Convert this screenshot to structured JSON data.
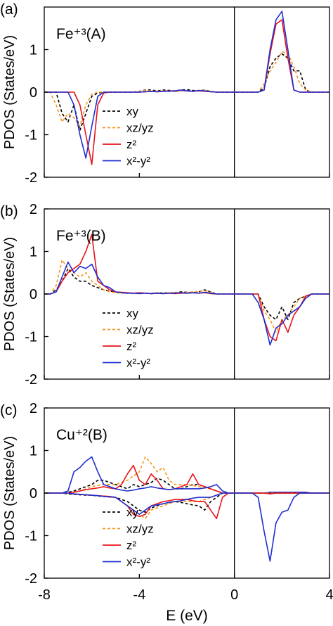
{
  "chart_data": [
    {
      "type": "line",
      "panel_label": "(a)",
      "annotation": "Fe⁺³(A)",
      "ylabel": "PDOS (States/eV)",
      "xlim": [
        -8,
        4
      ],
      "xticks": [
        -8,
        -4,
        0,
        4
      ],
      "ylim": [
        -2,
        2
      ],
      "yticks": [
        -2,
        -1,
        0,
        1
      ],
      "vline": 0,
      "x": [
        -8,
        -7.75,
        -7.5,
        -7.25,
        -7,
        -6.75,
        -6.5,
        -6.25,
        -6,
        -5.75,
        -5.5,
        -5.25,
        -5,
        -4.75,
        -4.5,
        -4.25,
        -4,
        -3.75,
        -3.5,
        -3.25,
        -3,
        -2.75,
        -2.5,
        -2.25,
        -2,
        -1.75,
        -1.5,
        -1.25,
        -1,
        -0.75,
        -0.5,
        -0.25,
        0,
        0.25,
        0.5,
        0.75,
        1,
        1.25,
        1.5,
        1.75,
        2,
        2.25,
        2.5,
        2.75,
        3,
        3.25,
        3.5,
        3.75,
        4
      ],
      "series": [
        {
          "name": "xy",
          "color": "#000000",
          "dash": true,
          "values": [
            0,
            0,
            0,
            -0.5,
            -0.7,
            -0.3,
            -0.9,
            -0.5,
            -0.1,
            -0.02,
            0,
            0,
            0,
            0,
            0,
            0,
            0.02,
            0.05,
            0.05,
            0.03,
            0.05,
            0.04,
            0.03,
            0.05,
            0.06,
            0.04,
            0.03,
            0.05,
            0.02,
            0,
            0,
            0,
            0,
            0,
            0,
            0,
            0,
            0.1,
            0.6,
            0.8,
            0.9,
            0.8,
            0.5,
            0.5,
            0.05,
            0,
            0,
            0,
            0
          ]
        },
        {
          "name": "xz/yz",
          "color": "#f7941d",
          "dash": true,
          "values": [
            0,
            0,
            -0.3,
            -0.7,
            -0.5,
            -0.6,
            -0.8,
            -0.3,
            -0.05,
            0,
            0,
            0,
            0,
            0,
            0,
            0,
            0.02,
            0.04,
            0.03,
            0.02,
            0.03,
            0.02,
            0.03,
            0.04,
            0.03,
            0.02,
            0.03,
            0.04,
            0.02,
            0,
            0,
            0,
            0,
            0,
            0,
            0,
            0,
            0.2,
            0.5,
            0.7,
            0.95,
            0.9,
            0.6,
            0.2,
            0.05,
            0,
            0,
            0,
            0
          ]
        },
        {
          "name": "z²",
          "color": "#e8141b",
          "dash": false,
          "values": [
            0,
            0,
            0,
            0,
            0,
            0,
            -0.3,
            -1.0,
            -1.7,
            -0.3,
            -0.02,
            0,
            0,
            0,
            0,
            0,
            0,
            0.01,
            0.02,
            0.01,
            0.02,
            0.03,
            0.02,
            0.04,
            0.03,
            0.02,
            0.03,
            0.02,
            0.01,
            0,
            0,
            0,
            0,
            0,
            0,
            0,
            0,
            0.05,
            0.9,
            1.6,
            1.7,
            0.8,
            0.05,
            0,
            0,
            0,
            0,
            0,
            0
          ]
        },
        {
          "name": "x²-y²",
          "color": "#1f2fd1",
          "dash": false,
          "values": [
            0,
            0,
            0,
            0,
            0,
            -0.3,
            -1.0,
            -1.55,
            -0.8,
            -0.1,
            0,
            0,
            0,
            0,
            0,
            0,
            0,
            0.01,
            0.02,
            0.01,
            0.02,
            0.02,
            0.03,
            0.05,
            0.03,
            0.02,
            0.04,
            0.03,
            0.01,
            0,
            0,
            0,
            0,
            0,
            0,
            0,
            0,
            0.05,
            1.0,
            1.7,
            1.9,
            1.0,
            0.05,
            0,
            0,
            0,
            0,
            0,
            0
          ]
        }
      ]
    },
    {
      "type": "line",
      "panel_label": "(b)",
      "annotation": "Fe⁺³(B)",
      "ylabel": "PDOS (States/eV)",
      "xlim": [
        -8,
        4
      ],
      "xticks": [
        -8,
        -4,
        0,
        4
      ],
      "ylim": [
        -2,
        2
      ],
      "yticks": [
        -2,
        -1,
        0,
        1,
        2
      ],
      "vline": 0,
      "x": [
        -8,
        -7.75,
        -7.5,
        -7.25,
        -7,
        -6.75,
        -6.5,
        -6.25,
        -6,
        -5.75,
        -5.5,
        -5.25,
        -5,
        -4.75,
        -4.5,
        -4.25,
        -4,
        -3.75,
        -3.5,
        -3.25,
        -3,
        -2.75,
        -2.5,
        -2.25,
        -2,
        -1.75,
        -1.5,
        -1.25,
        -1,
        -0.75,
        -0.5,
        -0.25,
        0,
        0.25,
        0.5,
        0.75,
        1,
        1.25,
        1.5,
        1.75,
        2,
        2.25,
        2.5,
        2.75,
        3,
        3.25,
        3.5,
        3.75,
        4
      ],
      "series": [
        {
          "name": "xy",
          "color": "#000000",
          "dash": true,
          "values": [
            0,
            0,
            0.1,
            0.3,
            0.6,
            0.4,
            0.3,
            0.3,
            0.2,
            0.15,
            0.1,
            0.07,
            0.05,
            0.03,
            0.02,
            0.02,
            0.01,
            0.02,
            0.01,
            0.02,
            0.03,
            0.02,
            0.03,
            0.05,
            0.04,
            0.03,
            0.05,
            0.1,
            0.05,
            0,
            0,
            0,
            0,
            0,
            0,
            0,
            0,
            -0.3,
            -0.5,
            -0.6,
            -0.3,
            -0.6,
            -0.2,
            -0.1,
            -0.05,
            0,
            0,
            0,
            0
          ]
        },
        {
          "name": "xz/yz",
          "color": "#f7941d",
          "dash": true,
          "values": [
            0,
            0,
            0.2,
            0.8,
            0.6,
            0.5,
            0.4,
            0.5,
            0.3,
            0.2,
            0.1,
            0.05,
            0.03,
            0.02,
            0.02,
            0.01,
            0.02,
            0.01,
            0.02,
            0.03,
            0.02,
            0.03,
            0.04,
            0.03,
            0.04,
            0.05,
            0.06,
            0.08,
            0.04,
            0,
            0,
            0,
            0,
            0,
            0,
            0,
            0,
            -0.4,
            -0.6,
            -0.9,
            -0.6,
            -0.5,
            -0.3,
            -0.1,
            -0.05,
            0,
            0,
            0,
            0
          ]
        },
        {
          "name": "z²",
          "color": "#e8141b",
          "dash": false,
          "values": [
            0,
            0,
            0.05,
            0.3,
            0.5,
            0.6,
            0.7,
            1.0,
            1.4,
            0.3,
            0.2,
            0.1,
            0.05,
            0.04,
            0.03,
            0.02,
            0.03,
            0.02,
            0.01,
            0.02,
            0.01,
            0.02,
            0.01,
            0.02,
            0.02,
            0.03,
            0.02,
            0.03,
            0.01,
            0,
            0,
            0,
            0,
            0,
            0,
            0,
            0,
            -0.6,
            -1.0,
            -1.1,
            -0.6,
            -0.9,
            -0.5,
            -0.3,
            -0.05,
            0,
            0,
            0,
            0
          ]
        },
        {
          "name": "x²-y²",
          "color": "#1f2fd1",
          "dash": false,
          "values": [
            0,
            0,
            0.05,
            0.4,
            0.75,
            0.5,
            0.65,
            0.6,
            0.7,
            0.4,
            0.2,
            0.15,
            0.05,
            0.03,
            0.02,
            0.02,
            0.01,
            0.02,
            0.01,
            0.02,
            0.01,
            0.02,
            0.02,
            0.03,
            0.02,
            0.03,
            0.02,
            0.04,
            0.02,
            0,
            0,
            0,
            0,
            0,
            0,
            0,
            -0.2,
            -0.6,
            -1.2,
            -0.8,
            -0.7,
            -0.5,
            -0.4,
            -0.3,
            -0.1,
            0,
            0,
            0,
            0
          ]
        }
      ]
    },
    {
      "type": "line",
      "panel_label": "(c)",
      "annotation": "Cu⁺²(B)",
      "ylabel": "PDOS (States/eV)",
      "xlabel": "E (eV)",
      "xlim": [
        -8,
        4
      ],
      "xticks": [
        -8,
        -4,
        0,
        4
      ],
      "ylim": [
        -2,
        2
      ],
      "yticks": [
        -2,
        -1,
        0,
        1,
        2
      ],
      "vline": 0,
      "x": [
        -8,
        -7.75,
        -7.5,
        -7.25,
        -7,
        -6.75,
        -6.5,
        -6.25,
        -6,
        -5.75,
        -5.5,
        -5.25,
        -5,
        -4.75,
        -4.5,
        -4.25,
        -4,
        -3.75,
        -3.5,
        -3.25,
        -3,
        -2.75,
        -2.5,
        -2.25,
        -2,
        -1.75,
        -1.5,
        -1.25,
        -1,
        -0.75,
        -0.5,
        -0.25,
        0,
        0.25,
        0.5,
        0.75,
        1,
        1.25,
        1.5,
        1.75,
        2,
        2.25,
        2.5,
        2.75,
        3,
        3.25,
        3.5,
        3.75,
        4
      ],
      "series": [
        {
          "name": "xy",
          "color": "#000000",
          "dash": true,
          "values": [
            0,
            0,
            0,
            0,
            0.02,
            0.05,
            0.1,
            0.15,
            0.2,
            0.3,
            0.3,
            0.25,
            0.2,
            0.15,
            0.1,
            0.2,
            0.15,
            0.2,
            0.25,
            0.35,
            0.3,
            0.2,
            0.1,
            0.1,
            0.15,
            0.2,
            0.2,
            0.15,
            0.1,
            0.05,
            0,
            0,
            0,
            0,
            0,
            0,
            0,
            0,
            0,
            0,
            0,
            0,
            0,
            0,
            0,
            0,
            0,
            0,
            0
          ]
        },
        {
          "name": "xz/yz",
          "color": "#f7941d",
          "dash": true,
          "values": [
            0,
            0,
            0,
            0,
            0,
            0.02,
            0.05,
            0.1,
            0.15,
            0.18,
            0.2,
            0.2,
            0.2,
            0.25,
            0.3,
            0.4,
            0.5,
            0.85,
            0.7,
            0.5,
            0.6,
            0.3,
            0.2,
            0.2,
            0.2,
            0.18,
            0.15,
            0.12,
            0.1,
            0.05,
            0,
            0,
            0,
            0,
            0,
            0,
            0,
            0,
            0,
            0,
            0,
            0,
            0,
            0,
            0,
            0,
            0,
            0,
            0
          ]
        },
        {
          "name": "z²",
          "color": "#e8141b",
          "dash": false,
          "values": [
            0,
            0,
            0,
            0,
            0,
            0.02,
            0.05,
            0.08,
            0.1,
            0.12,
            0.15,
            0.12,
            0.1,
            0.2,
            0.45,
            0.65,
            0.3,
            0.2,
            0.45,
            0.3,
            0.1,
            0.08,
            0.1,
            0.15,
            0.2,
            0.45,
            0.2,
            0.15,
            0.1,
            0.05,
            0,
            0,
            0,
            0,
            0,
            0,
            0,
            0,
            0,
            0,
            0,
            0,
            0,
            0,
            0,
            0,
            0,
            0,
            0
          ]
        },
        {
          "name": "x²-y²",
          "color": "#1f2fd1",
          "dash": false,
          "values": [
            0,
            0,
            0,
            0,
            0.05,
            0.5,
            0.6,
            0.75,
            0.85,
            0.5,
            0.2,
            0.15,
            0.1,
            0.07,
            0.05,
            0.07,
            0.1,
            0.12,
            0.15,
            0.12,
            0.1,
            0.08,
            0.1,
            0.1,
            0.1,
            0.1,
            0.1,
            0.12,
            0.15,
            0.2,
            0.05,
            0,
            0,
            0,
            0,
            0,
            0,
            0,
            0.02,
            0.02,
            0.02,
            0.02,
            0.02,
            0.02,
            0.02,
            0,
            0,
            0,
            0
          ]
        },
        {
          "color": "#000000",
          "dash": true,
          "values": [
            0,
            0,
            0,
            0,
            -0.02,
            -0.03,
            -0.04,
            -0.05,
            -0.05,
            -0.07,
            -0.08,
            -0.09,
            -0.1,
            -0.15,
            -0.2,
            -0.3,
            -0.4,
            -0.45,
            -0.35,
            -0.3,
            -0.25,
            -0.22,
            -0.2,
            -0.22,
            -0.25,
            -0.28,
            -0.3,
            -0.4,
            -0.2,
            -0.1,
            0,
            0,
            0,
            0,
            0,
            0,
            0,
            0,
            0,
            0,
            0,
            0,
            0,
            0,
            0,
            0,
            0,
            0,
            0
          ]
        },
        {
          "color": "#f7941d",
          "dash": true,
          "values": [
            0,
            0,
            0,
            0,
            0,
            -0.02,
            -0.03,
            -0.04,
            -0.05,
            -0.06,
            -0.07,
            -0.08,
            -0.1,
            -0.2,
            -0.3,
            -0.4,
            -0.5,
            -0.6,
            -0.4,
            -0.35,
            -0.3,
            -0.25,
            -0.2,
            -0.2,
            -0.2,
            -0.2,
            -0.2,
            -0.15,
            -0.1,
            -0.05,
            0,
            0,
            0,
            0,
            0,
            0,
            0,
            0,
            0,
            0,
            0,
            0,
            0,
            0,
            0,
            0,
            0,
            0,
            0
          ]
        },
        {
          "color": "#e8141b",
          "dash": false,
          "values": [
            0,
            0,
            0,
            0,
            0,
            -0.02,
            -0.03,
            -0.04,
            -0.05,
            -0.06,
            -0.07,
            -0.08,
            -0.1,
            -0.2,
            -0.3,
            -0.5,
            -0.55,
            -0.5,
            -0.3,
            -0.25,
            -0.2,
            -0.18,
            -0.15,
            -0.15,
            -0.15,
            -0.18,
            -0.2,
            -0.2,
            -0.4,
            -0.6,
            -0.1,
            0,
            0,
            0,
            0,
            0,
            0,
            0,
            -0.02,
            0,
            0,
            0,
            0,
            0,
            0,
            0,
            0,
            0,
            0
          ]
        },
        {
          "color": "#1f2fd1",
          "dash": false,
          "values": [
            0,
            0,
            0,
            0,
            0,
            -0.02,
            -0.03,
            -0.04,
            -0.05,
            -0.06,
            -0.08,
            -0.09,
            -0.1,
            -0.2,
            -0.3,
            -0.4,
            -0.5,
            -0.4,
            -0.3,
            -0.28,
            -0.25,
            -0.22,
            -0.2,
            -0.18,
            -0.15,
            -0.12,
            -0.1,
            -0.1,
            -0.1,
            -0.05,
            0,
            0,
            0,
            0,
            0,
            0,
            -0.1,
            -0.9,
            -1.6,
            -0.7,
            -0.45,
            -0.4,
            -0.1,
            0,
            0,
            0,
            0,
            0,
            0
          ]
        }
      ]
    }
  ]
}
